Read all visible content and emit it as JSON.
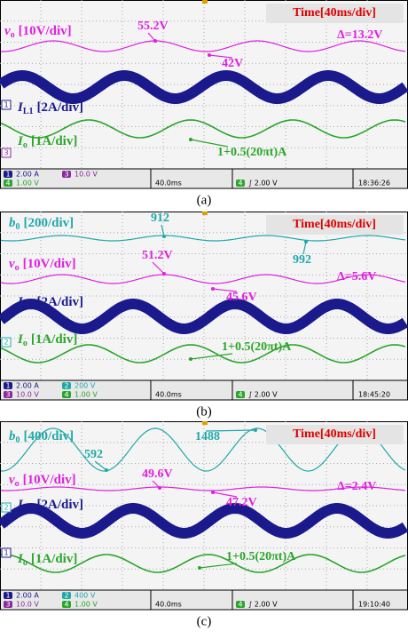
{
  "panels": [
    {
      "caption": "(a)",
      "time_label": "Time[40ms/div]",
      "delta": "Δ=13.2V",
      "traces": [
        {
          "symbol": "v",
          "sub": "o",
          "scale": "[10V/div]",
          "color": "#e020e0"
        },
        {
          "symbol": "I",
          "sub": "L1",
          "scale": "[2A/div]",
          "color": "#1a1a8c"
        },
        {
          "symbol": "I",
          "sub": "o",
          "scale": "[1A/div]",
          "color": "#2aa52a"
        }
      ],
      "annotations": [
        "55.2V",
        "42V",
        "1+0.5(20πt)A"
      ],
      "markers": [
        {
          "text": "1",
          "color": "#1a1a8c"
        },
        {
          "text": "3",
          "color": "#8a2a9c"
        }
      ],
      "channels": [
        {
          "num": "1",
          "value": "2.00 A",
          "color": "#1a1a8c"
        },
        {
          "num": "3",
          "value": "10.0 V",
          "color": "#8a2a9c"
        },
        {
          "num": "4",
          "value": "1.00 V",
          "color": "#2aa52a"
        }
      ],
      "timebase": "40.0ms",
      "trigger": {
        "num": "4",
        "value": "∫ 2.00 V"
      },
      "clock": "18:36:26"
    },
    {
      "caption": "(b)",
      "time_label": "Time[40ms/div]",
      "delta": "Δ=5.6V",
      "traces": [
        {
          "symbol": "b",
          "sub": "0",
          "scale": "[200/div]",
          "color": "#20a8a8"
        },
        {
          "symbol": "v",
          "sub": "o",
          "scale": "[10V/div]",
          "color": "#e020e0"
        },
        {
          "symbol": "I",
          "sub": "L1",
          "scale": "[2A/div]",
          "color": "#1a1a8c"
        },
        {
          "symbol": "I",
          "sub": "o",
          "scale": "[1A/div]",
          "color": "#2aa52a"
        }
      ],
      "annotations": [
        "912",
        "992",
        "51.2V",
        "45.6V",
        "1+0.5(20πt)A"
      ],
      "markers": [
        {
          "text": "2",
          "color": "#20a8a8"
        }
      ],
      "channels": [
        {
          "num": "1",
          "value": "2.00 A",
          "color": "#1a1a8c"
        },
        {
          "num": "2",
          "value": "200 V",
          "color": "#20a8a8"
        },
        {
          "num": "3",
          "value": "10.0 V",
          "color": "#8a2a9c"
        },
        {
          "num": "4",
          "value": "1.00 V",
          "color": "#2aa52a"
        }
      ],
      "timebase": "40.0ms",
      "trigger": {
        "num": "4",
        "value": "∫ 2.00 V"
      },
      "clock": "18:45:20"
    },
    {
      "caption": "(c)",
      "time_label": "Time[40ms/div]",
      "delta": "Δ=2.4V",
      "traces": [
        {
          "symbol": "b",
          "sub": "0",
          "scale": "[400/div]",
          "color": "#20a8a8"
        },
        {
          "symbol": "v",
          "sub": "o",
          "scale": "[10V/div]",
          "color": "#e020e0"
        },
        {
          "symbol": "I",
          "sub": "L1",
          "scale": "[2A/div]",
          "color": "#1a1a8c"
        },
        {
          "symbol": "I",
          "sub": "o",
          "scale": "[1A/div]",
          "color": "#2aa52a"
        }
      ],
      "annotations": [
        "592",
        "1488",
        "49.6V",
        "47.2V",
        "1+0.5(20πt)A"
      ],
      "markers": [
        {
          "text": "2",
          "color": "#20a8a8"
        },
        {
          "text": "1",
          "color": "#1a1a8c"
        }
      ],
      "channels": [
        {
          "num": "1",
          "value": "2.00 A",
          "color": "#1a1a8c"
        },
        {
          "num": "2",
          "value": "400 V",
          "color": "#20a8a8"
        },
        {
          "num": "3",
          "value": "10.0 V",
          "color": "#8a2a9c"
        },
        {
          "num": "4",
          "value": "1.00 V",
          "color": "#2aa52a"
        }
      ],
      "timebase": "40.0ms",
      "trigger": {
        "num": "4",
        "value": "∫ 2.00 V"
      },
      "clock": "19:10:40"
    }
  ]
}
